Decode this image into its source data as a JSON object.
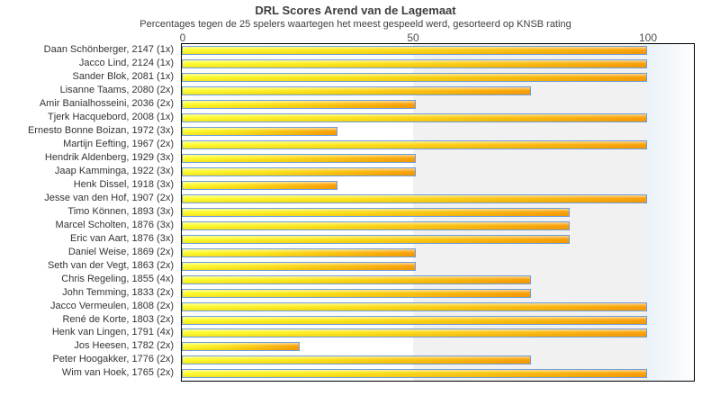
{
  "title": "DRL Scores Arend van de Lagemaat",
  "subtitle": "Percentages tegen de 25 spelers waartegen het meest gespeeld werd, gesorteerd op KNSB rating",
  "axis": {
    "ticks": [
      "0",
      "50",
      "100"
    ]
  },
  "colors": {
    "bar_gradient_start": "#ffff2e",
    "bar_gradient_end": "#fba00a",
    "bar_border": "#6d9eda",
    "band_alternate": "#f1f1f1",
    "plot_border": "#000000",
    "text": "#333333"
  },
  "chart_data": {
    "type": "bar",
    "title": "DRL Scores Arend van de Lagemaat",
    "subtitle": "Percentages tegen de 25 spelers waartegen het meest gespeeld werd, gesorteerd op KNSB rating",
    "xlabel": "",
    "ylabel": "",
    "value_axis_ticks": [
      0,
      50,
      100
    ],
    "value_axis_range": [
      0,
      110.7
    ],
    "grid": "alternating bands 0-50 white, 50-100 gray",
    "legend_position": "none",
    "categories": [
      "Daan Schönberger, 2147 (1x)",
      "Jacco Lind, 2124 (1x)",
      "Sander Blok, 2081 (1x)",
      "Lisanne Taams, 2080 (2x)",
      "Amir Banialhosseini, 2036 (2x)",
      "Tjerk Hacquebord, 2008 (1x)",
      "Ernesto Bonne Boizan, 1972 (3x)",
      "Martijn Eefting, 1967 (2x)",
      "Hendrik Aldenberg, 1929 (3x)",
      "Jaap Kamminga, 1922 (3x)",
      "Henk Dissel, 1918 (3x)",
      "Jesse van den Hof, 1907 (2x)",
      "Timo Können, 1893 (3x)",
      "Marcel Scholten, 1876 (3x)",
      "Eric van Aart, 1876 (3x)",
      "Daniel Weise, 1869 (2x)",
      "Seth van der Vegt, 1863 (2x)",
      "Chris Regeling, 1855 (4x)",
      "John Temming, 1833 (2x)",
      "Jacco Vermeulen, 1808 (2x)",
      "René de Korte, 1803 (2x)",
      "Henk van Lingen, 1791 (4x)",
      "Jos Heesen, 1782 (2x)",
      "Peter Hoogakker, 1776 (2x)",
      "Wim van Hoek, 1765 (2x)"
    ],
    "values": [
      100,
      100,
      100,
      75,
      50,
      100,
      33.3,
      100,
      50,
      50,
      33.3,
      100,
      83.3,
      83.3,
      83.3,
      50,
      50,
      75,
      75,
      100,
      100,
      100,
      25,
      75,
      100
    ]
  }
}
